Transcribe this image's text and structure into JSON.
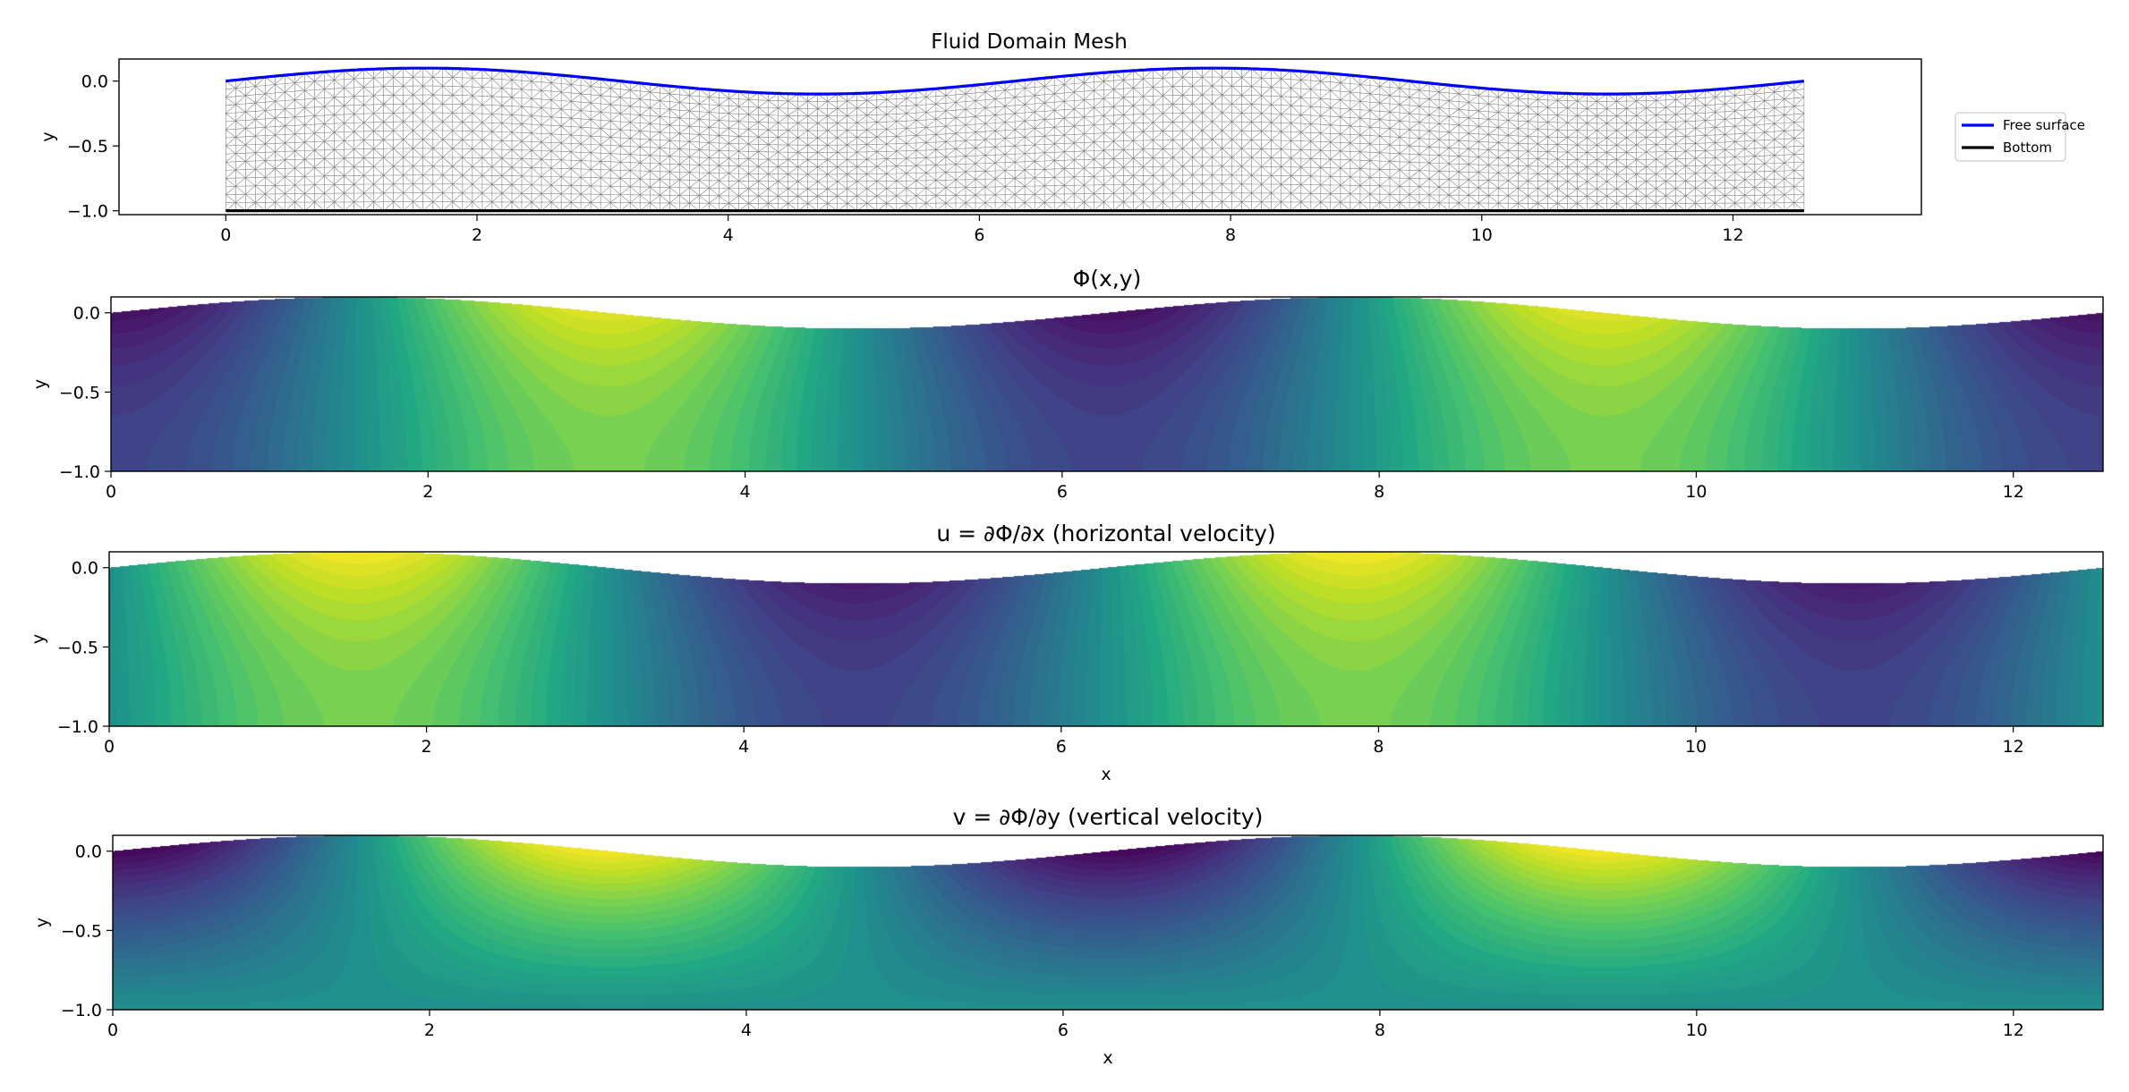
{
  "chart_data": [
    {
      "type": "mesh",
      "title": "Fluid Domain Mesh",
      "xlabel": "",
      "ylabel": "y",
      "xlim": [
        -0.85,
        13.5
      ],
      "ylim": [
        -1.03,
        0.17
      ],
      "domain": {
        "x_min": 0,
        "x_max": 12.566,
        "bottom": -1.0,
        "surface_amplitude": 0.1,
        "surface_wavenumber": 1
      },
      "xticks": [
        0,
        2,
        4,
        6,
        8,
        10,
        12
      ],
      "yticks": [
        0.0,
        -0.5,
        -1.0
      ],
      "xtick_labels": [
        "0",
        "2",
        "4",
        "6",
        "8",
        "10",
        "12"
      ],
      "ytick_labels": [
        "0.0",
        "−0.5",
        "−1.0"
      ],
      "series": [
        {
          "name": "Free surface",
          "color": "#0000ff"
        },
        {
          "name": "Bottom",
          "color": "#000000"
        }
      ],
      "legend_position": "outside-right",
      "mesh_color": "#808080"
    },
    {
      "type": "heatmap",
      "title": "Φ(x,y)",
      "xlabel": "",
      "ylabel": "y",
      "xlim": [
        0,
        12.566
      ],
      "ylim": [
        -1.0,
        0.1
      ],
      "field": "phi",
      "colormap": "viridis",
      "xticks": [
        0,
        2,
        4,
        6,
        8,
        10,
        12
      ],
      "yticks": [
        0.0,
        -0.5,
        -1.0
      ],
      "xtick_labels": [
        "0",
        "2",
        "4",
        "6",
        "8",
        "10",
        "12"
      ],
      "ytick_labels": [
        "0.0",
        "−0.5",
        "−1.0"
      ]
    },
    {
      "type": "heatmap",
      "title": "u = ∂Φ/∂x (horizontal velocity)",
      "xlabel": "x",
      "ylabel": "y",
      "xlim": [
        0,
        12.566
      ],
      "ylim": [
        -1.0,
        0.1
      ],
      "field": "u",
      "colormap": "viridis",
      "xticks": [
        0,
        2,
        4,
        6,
        8,
        10,
        12
      ],
      "yticks": [
        0.0,
        -0.5,
        -1.0
      ],
      "xtick_labels": [
        "0",
        "2",
        "4",
        "6",
        "8",
        "10",
        "12"
      ],
      "ytick_labels": [
        "0.0",
        "−0.5",
        "−1.0"
      ]
    },
    {
      "type": "heatmap",
      "title": "v = ∂Φ/∂y (vertical velocity)",
      "xlabel": "x",
      "ylabel": "y",
      "xlim": [
        0,
        12.566
      ],
      "ylim": [
        -1.0,
        0.1
      ],
      "field": "v",
      "colormap": "viridis",
      "xticks": [
        0,
        2,
        4,
        6,
        8,
        10,
        12
      ],
      "yticks": [
        0.0,
        -0.5,
        -1.0
      ],
      "xtick_labels": [
        "0",
        "2",
        "4",
        "6",
        "8",
        "10",
        "12"
      ],
      "ytick_labels": [
        "0.0",
        "−0.5",
        "−1.0"
      ]
    }
  ]
}
